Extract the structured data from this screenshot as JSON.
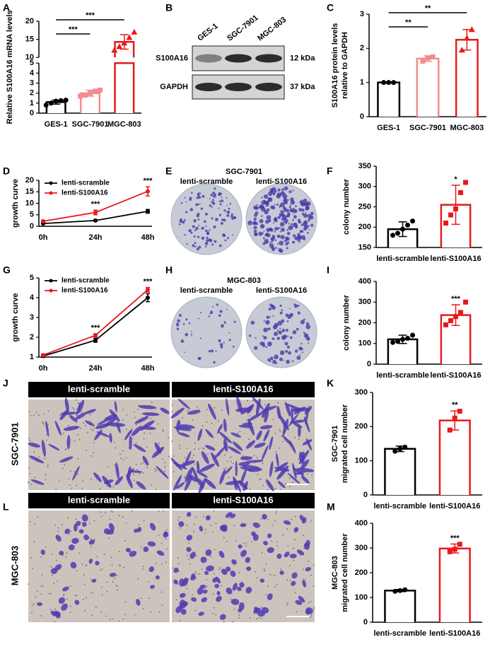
{
  "chart_data": [
    {
      "type": "bar",
      "panel": "A",
      "ylabel": [
        "Relative S100A16 mRNA levels"
      ],
      "categories": [
        "GES-1",
        "SGC-7901",
        "MGC-803"
      ],
      "colors": [
        "#000000",
        "#f28c8c",
        "#e8191c"
      ],
      "markers": [
        "circle",
        "square",
        "triangle"
      ],
      "values": [
        1.1,
        2.0,
        14.3
      ],
      "errors": [
        0.2,
        0.3,
        2.0
      ],
      "points": [
        [
          0.8,
          1.0,
          1.2,
          1.25,
          1.3
        ],
        [
          1.7,
          1.8,
          2.0,
          2.2,
          2.3
        ],
        [
          12,
          13,
          14,
          15.5,
          17
        ]
      ],
      "ylim": [
        0,
        20
      ],
      "axis_break": [
        5,
        10
      ],
      "yticks": [
        0,
        1,
        2,
        3,
        4,
        5,
        10,
        15,
        20
      ],
      "annotations": [
        {
          "label": "***",
          "between": [
            "GES-1",
            "SGC-7901"
          ]
        },
        {
          "label": "***",
          "between": [
            "GES-1",
            "MGC-803"
          ]
        }
      ]
    },
    {
      "type": "bar",
      "panel": "C",
      "ylabel": [
        "S100A16 protein levels",
        "relative to GAPDH"
      ],
      "categories": [
        "GES-1",
        "SGC-7901",
        "MGC-803"
      ],
      "colors": [
        "#000000",
        "#f28c8c",
        "#e8191c"
      ],
      "markers": [
        "circle",
        "square",
        "triangle"
      ],
      "values": [
        1.0,
        1.7,
        2.25
      ],
      "errors": [
        0.02,
        0.08,
        0.3
      ],
      "points": [
        [
          1,
          1,
          1
        ],
        [
          1.62,
          1.72,
          1.75
        ],
        [
          1.95,
          2.3,
          2.55
        ]
      ],
      "ylim": [
        0,
        3
      ],
      "yticks": [
        0,
        1,
        2,
        3
      ],
      "annotations": [
        {
          "label": "**",
          "between": [
            "GES-1",
            "SGC-7901"
          ]
        },
        {
          "label": "**",
          "between": [
            "GES-1",
            "MGC-803"
          ]
        }
      ]
    },
    {
      "type": "line",
      "panel": "D",
      "ylabel": [
        "growth curve"
      ],
      "categories": [
        "0h",
        "24h",
        "48h"
      ],
      "series": [
        {
          "name": "lenti-scramble",
          "color": "#000000",
          "values": [
            1.2,
            2.5,
            6.5
          ],
          "errors": [
            0.2,
            0.3,
            0.8
          ]
        },
        {
          "name": "lenti-S100A16",
          "color": "#e8191c",
          "values": [
            2.2,
            6.0,
            15.2
          ],
          "errors": [
            0.3,
            1.0,
            2.0
          ]
        }
      ],
      "ylim": [
        0,
        20
      ],
      "yticks": [
        0,
        5,
        10,
        15,
        20
      ],
      "annotations": [
        {
          "label": "***",
          "at": "24h"
        },
        {
          "label": "***",
          "at": "48h"
        }
      ]
    },
    {
      "type": "bar",
      "panel": "F",
      "ylabel": [
        "colony number"
      ],
      "categories": [
        "lenti-scramble",
        "lenti-S100A16"
      ],
      "colors": [
        "#000000",
        "#e8191c"
      ],
      "markers": [
        "circle",
        "square"
      ],
      "values": [
        195,
        255
      ],
      "errors": [
        18,
        48
      ],
      "points": [
        [
          180,
          185,
          195,
          205,
          215
        ],
        [
          210,
          230,
          245,
          285,
          310
        ]
      ],
      "ylim": [
        150,
        350
      ],
      "yticks": [
        150,
        200,
        250,
        300,
        350
      ],
      "annotations": [
        {
          "label": "*",
          "over": "lenti-S100A16"
        }
      ]
    },
    {
      "type": "line",
      "panel": "G",
      "ylabel": [
        "growth curve"
      ],
      "categories": [
        "0h",
        "24h",
        "48h"
      ],
      "series": [
        {
          "name": "lenti-scramble",
          "color": "#000000",
          "values": [
            1.05,
            1.85,
            4.0
          ],
          "errors": [
            0.05,
            0.1,
            0.2
          ]
        },
        {
          "name": "lenti-S100A16",
          "color": "#e8191c",
          "values": [
            1.1,
            2.1,
            4.4
          ],
          "errors": [
            0.05,
            0.08,
            0.12
          ]
        }
      ],
      "ylim": [
        1,
        5
      ],
      "yticks": [
        1,
        2,
        3,
        4,
        5
      ],
      "annotations": [
        {
          "label": "***",
          "at": "24h"
        },
        {
          "label": "***",
          "at": "48h"
        }
      ]
    },
    {
      "type": "bar",
      "panel": "I",
      "ylabel": [
        "colony number"
      ],
      "categories": [
        "lenti-scramble",
        "lenti-S100A16"
      ],
      "colors": [
        "#000000",
        "#e8191c"
      ],
      "markers": [
        "circle",
        "square"
      ],
      "values": [
        120,
        237
      ],
      "errors": [
        20,
        50
      ],
      "points": [
        [
          105,
          110,
          120,
          125,
          140
        ],
        [
          190,
          210,
          230,
          250,
          300
        ]
      ],
      "ylim": [
        0,
        400
      ],
      "yticks": [
        0,
        100,
        200,
        300,
        400
      ],
      "annotations": [
        {
          "label": "***",
          "over": "lenti-S100A16"
        }
      ]
    },
    {
      "type": "bar",
      "panel": "K",
      "ylabel": [
        "SGC-7901",
        "migrated cell number"
      ],
      "categories": [
        "lenti-scramble",
        "lenti-S100A16"
      ],
      "colors": [
        "#000000",
        "#e8191c"
      ],
      "markers": [
        "circle",
        "square"
      ],
      "values": [
        135,
        218
      ],
      "errors": [
        8,
        28
      ],
      "points": [
        [
          128,
          135,
          140
        ],
        [
          190,
          225,
          245
        ]
      ],
      "ylim": [
        0,
        300
      ],
      "yticks": [
        0,
        100,
        200,
        300
      ],
      "annotations": [
        {
          "label": "**",
          "over": "lenti-S100A16"
        }
      ]
    },
    {
      "type": "bar",
      "panel": "M",
      "ylabel": [
        "MGC-803",
        "migrated cell number"
      ],
      "categories": [
        "lenti-scramble",
        "lenti-S100A16"
      ],
      "colors": [
        "#000000",
        "#e8191c"
      ],
      "markers": [
        "circle",
        "square"
      ],
      "values": [
        128,
        298
      ],
      "errors": [
        4,
        18
      ],
      "points": [
        [
          125,
          128,
          131
        ],
        [
          285,
          295,
          315
        ]
      ],
      "ylim": [
        0,
        400
      ],
      "yticks": [
        0,
        100,
        200,
        300,
        400
      ],
      "annotations": [
        {
          "label": "***",
          "over": "lenti-S100A16"
        }
      ]
    }
  ],
  "blot": {
    "panel": "B",
    "lanes": [
      "GES-1",
      "SGC-7901",
      "MGC-803"
    ],
    "rows": [
      {
        "name": "S100A16",
        "size": "12 kDa"
      },
      {
        "name": "GAPDH",
        "size": "37 kDa"
      }
    ]
  },
  "colony_assays": [
    {
      "panel": "E",
      "title": "SGC-7901",
      "conditions": [
        "lenti-scramble",
        "lenti-S100A16"
      ]
    },
    {
      "panel": "H",
      "title": "MGC-803",
      "conditions": [
        "lenti-scramble",
        "lenti-S100A16"
      ]
    }
  ],
  "transwell_images": [
    {
      "panel": "J",
      "cell_line": "SGC-7901",
      "conditions": [
        "lenti-scramble",
        "lenti-S100A16"
      ]
    },
    {
      "panel": "L",
      "cell_line": "MGC-803",
      "conditions": [
        "lenti-scramble",
        "lenti-S100A16"
      ]
    }
  ]
}
